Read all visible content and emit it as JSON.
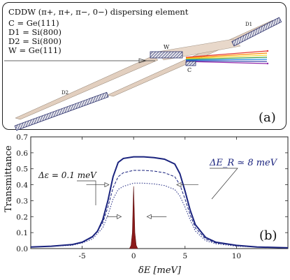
{
  "panel_a": {
    "caption": "CDDW (π+, π+, π−, 0−) dispersing element",
    "specs": [
      "C = Ge(111)",
      "D1 = Si(800)",
      "D2 = Si(800)",
      "W = Ge(111)"
    ],
    "element_labels": {
      "w": "W",
      "c": "C",
      "d1": "D1",
      "d2": "D2"
    },
    "panel_label": "(a)"
  },
  "panel_b": {
    "panel_label": "(b)",
    "annotation_left": "Δε = 0.1 meV",
    "annotation_right": "ΔE_R ≃ 8 meV",
    "ylabel": "Transmittance",
    "xlabel": "δE [meV]"
  },
  "chart_data": {
    "type": "line",
    "xlabel": "δE [meV]",
    "ylabel": "Transmittance",
    "xlim": [
      -10,
      15
    ],
    "ylim": [
      0,
      0.7
    ],
    "xticks": [
      -5,
      0,
      5,
      10
    ],
    "yticks": [
      0.0,
      0.1,
      0.2,
      0.3,
      0.4,
      0.5,
      0.6,
      0.7
    ],
    "series": [
      {
        "style": "solid-thick",
        "color": "#1a237e",
        "x": [
          -10,
          -8,
          -6,
          -5,
          -4,
          -3.5,
          -3,
          -2.5,
          -2,
          -1.5,
          -1,
          0,
          1,
          2,
          3,
          4,
          4.5,
          5,
          5.5,
          6,
          7,
          8,
          10,
          12,
          15
        ],
        "y": [
          0.01,
          0.015,
          0.025,
          0.04,
          0.075,
          0.11,
          0.18,
          0.3,
          0.45,
          0.54,
          0.565,
          0.575,
          0.575,
          0.57,
          0.56,
          0.53,
          0.47,
          0.36,
          0.24,
          0.15,
          0.07,
          0.04,
          0.02,
          0.01,
          0.005
        ]
      },
      {
        "style": "dashed",
        "color": "#1a237e",
        "x": [
          -10,
          -8,
          -6,
          -5,
          -4,
          -3,
          -2.5,
          -2,
          -1.5,
          -1,
          0,
          1,
          2,
          3,
          4,
          4.5,
          5,
          5.5,
          6,
          7,
          8,
          10,
          12,
          15
        ],
        "y": [
          0.01,
          0.015,
          0.025,
          0.04,
          0.07,
          0.16,
          0.26,
          0.38,
          0.45,
          0.475,
          0.49,
          0.49,
          0.485,
          0.475,
          0.45,
          0.4,
          0.31,
          0.21,
          0.13,
          0.06,
          0.035,
          0.02,
          0.01,
          0.005
        ]
      },
      {
        "style": "dotted",
        "color": "#1a237e",
        "x": [
          -10,
          -8,
          -6,
          -5,
          -4,
          -3,
          -2.5,
          -2,
          -1.5,
          -1,
          0,
          1,
          2,
          3,
          4,
          4.5,
          5,
          5.5,
          6,
          7,
          8,
          10,
          12,
          15
        ],
        "y": [
          0.01,
          0.015,
          0.02,
          0.035,
          0.06,
          0.13,
          0.21,
          0.31,
          0.37,
          0.39,
          0.41,
          0.41,
          0.405,
          0.395,
          0.37,
          0.33,
          0.26,
          0.18,
          0.11,
          0.05,
          0.03,
          0.015,
          0.01,
          0.005
        ]
      },
      {
        "style": "filled-peak",
        "color": "#8b1a1a",
        "x": [
          -0.4,
          -0.25,
          -0.12,
          -0.05,
          0,
          0.05,
          0.12,
          0.25,
          0.4
        ],
        "y": [
          0,
          0.02,
          0.1,
          0.28,
          0.39,
          0.28,
          0.1,
          0.02,
          0
        ]
      }
    ]
  }
}
